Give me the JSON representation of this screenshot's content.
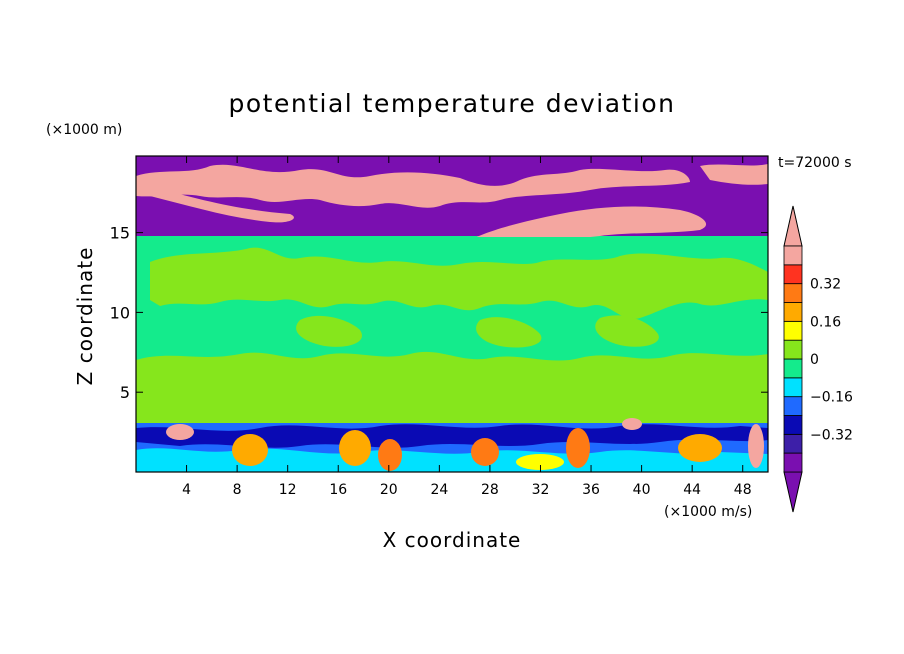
{
  "chart_data": {
    "type": "heatmap",
    "title": "potential temperature deviation",
    "xlabel": "X coordinate",
    "ylabel": "Z coordinate",
    "x_unit": "(×1000 m/s)",
    "y_unit": "(×1000 m)",
    "annotation": "t=72000 s",
    "xlim": [
      0,
      50
    ],
    "ylim": [
      0,
      19.8
    ],
    "x_ticks": [
      4,
      8,
      12,
      16,
      20,
      24,
      28,
      32,
      36,
      40,
      44,
      48
    ],
    "y_ticks": [
      5,
      10,
      15
    ],
    "colorbar": {
      "levels": [
        -0.4,
        -0.32,
        -0.24,
        -0.16,
        -0.08,
        0,
        0.08,
        0.16,
        0.24,
        0.32,
        0.4
      ],
      "tick_labels": [
        {
          "value": 0.32,
          "label": "0.32"
        },
        {
          "value": 0.16,
          "label": "0.16"
        },
        {
          "value": 0,
          "label": "0"
        },
        {
          "value": -0.16,
          "label": "−0.16"
        },
        {
          "value": -0.32,
          "label": "−0.32"
        }
      ],
      "colors": [
        "#7a0fb0",
        "#3d1fa8",
        "#0a0ab4",
        "#1f6aff",
        "#00e1ff",
        "#14eb8c",
        "#86e61c",
        "#ffff00",
        "#ffaa00",
        "#ff7a14",
        "#ff3320",
        "#f4a6a0"
      ],
      "extend": "both"
    },
    "layers": [
      {
        "name": "upper layer",
        "z_range": [
          14.8,
          19.8
        ],
        "dominant_value": -0.44,
        "secondary_value": 0.44
      },
      {
        "name": "middle layer",
        "z_range": [
          3.2,
          14.8
        ],
        "dominant_value": 0.04,
        "secondary_value": -0.04
      },
      {
        "name": "lower layer",
        "z_range": [
          0,
          3.2
        ],
        "dominant_value": -0.1,
        "value_range": [
          -0.44,
          0.44
        ]
      }
    ]
  }
}
